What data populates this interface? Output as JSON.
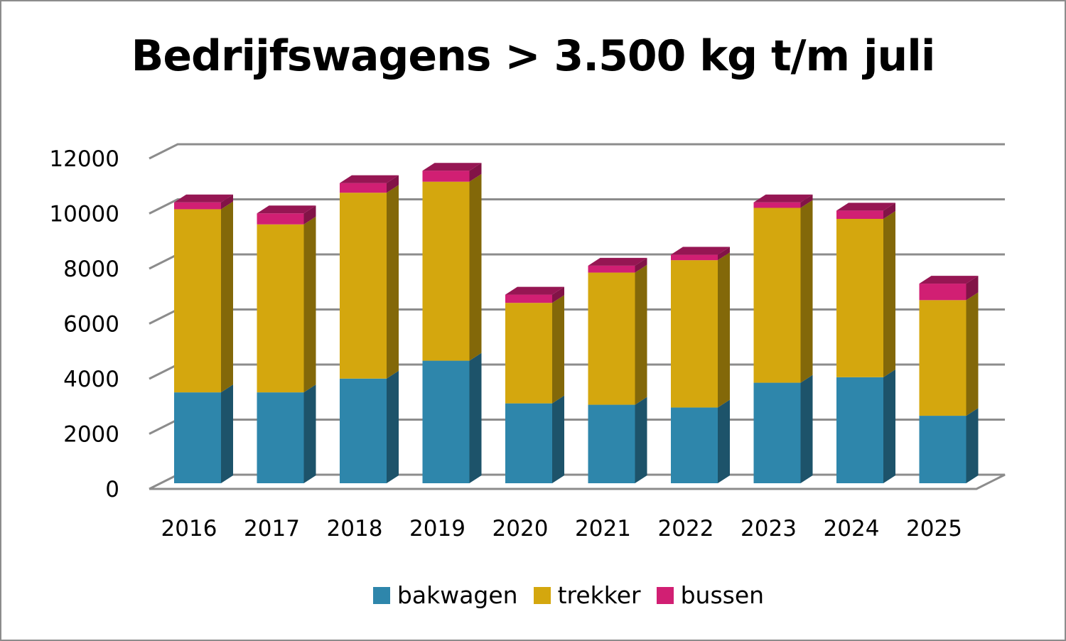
{
  "chart_data": {
    "type": "bar",
    "stacked": true,
    "title": "Bedrijfswagens > 3.500 kg t/m juli",
    "categories": [
      "2016",
      "2017",
      "2018",
      "2019",
      "2020",
      "2021",
      "2022",
      "2023",
      "2024",
      "2025"
    ],
    "series": [
      {
        "name": "bakwagen",
        "color": "#2e86ab",
        "values": [
          3300,
          3300,
          3800,
          4450,
          2900,
          2850,
          2750,
          3650,
          3850,
          2450
        ]
      },
      {
        "name": "trekker",
        "color": "#d4a70e",
        "values": [
          6650,
          6100,
          6750,
          6500,
          3650,
          4800,
          5350,
          6350,
          5750,
          4200
        ]
      },
      {
        "name": "bussen",
        "color": "#d11f73",
        "values": [
          250,
          400,
          350,
          400,
          300,
          250,
          200,
          200,
          300,
          600
        ]
      }
    ],
    "yticks": [
      "0",
      "2000",
      "4000",
      "6000",
      "8000",
      "10000",
      "12000"
    ],
    "ylim": [
      0,
      12000
    ],
    "grid": true,
    "legend": "bottom"
  }
}
